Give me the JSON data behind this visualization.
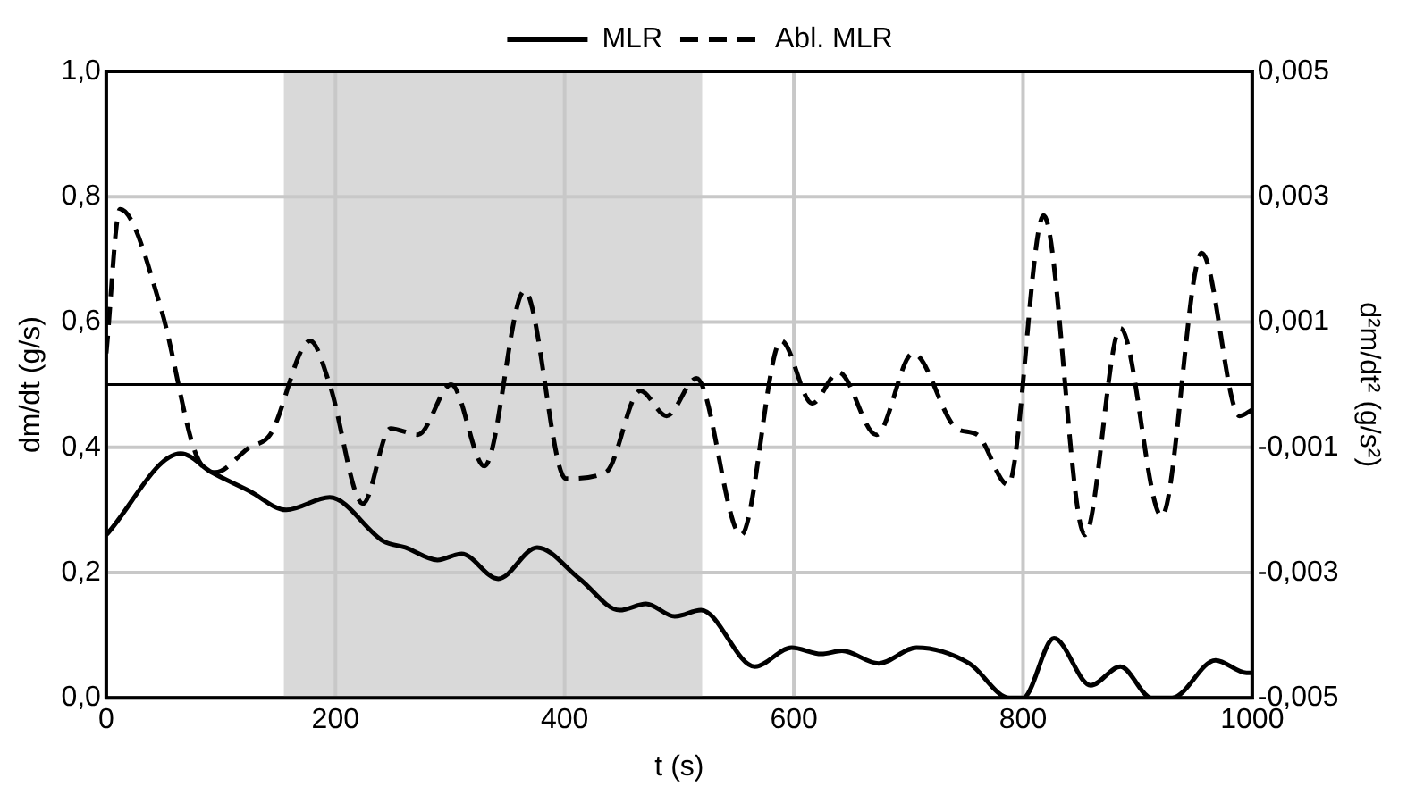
{
  "chart_data": {
    "type": "line",
    "xlabel": "t (s)",
    "ylabel": "dm/dt (g/s)",
    "y2label": "d²m/dt² (g/s²)",
    "xlim": [
      0,
      1000
    ],
    "xticks": [
      0,
      200,
      400,
      600,
      800,
      1000
    ],
    "ylim": [
      0,
      1
    ],
    "yticks": [
      {
        "value": 0,
        "label": "0,0"
      },
      {
        "value": 0.2,
        "label": "0,2"
      },
      {
        "value": 0.4,
        "label": "0,4"
      },
      {
        "value": 0.6,
        "label": "0,6"
      },
      {
        "value": 0.8,
        "label": "0,8"
      },
      {
        "value": 1,
        "label": "1,0"
      }
    ],
    "y2lim": [
      -0.005,
      0.005
    ],
    "y2ticks": [
      {
        "value": -0.005,
        "label": "-0,005"
      },
      {
        "value": -0.003,
        "label": "-0,003"
      },
      {
        "value": -0.001,
        "label": "-0,001"
      },
      {
        "value": 0.001,
        "label": "0,001"
      },
      {
        "value": 0.003,
        "label": "0,003"
      },
      {
        "value": 0.005,
        "label": "0,005"
      }
    ],
    "grid": true,
    "legend": "top",
    "marker": "none",
    "bands": [
      {
        "axis": "x",
        "from": 155,
        "to": 520,
        "color": "#d9d9d9"
      }
    ],
    "ref_lines": [
      {
        "axis": "y2",
        "value": 0,
        "color": "#000000"
      }
    ],
    "series": [
      {
        "name": "MLR",
        "color": "#000000",
        "line_style": "solid",
        "x": [
          0,
          65,
          92,
          125,
          157,
          195,
          242,
          261,
          289,
          310,
          342,
          376,
          413,
          448,
          471,
          496,
          519,
          566,
          598,
          624,
          642,
          674,
          707,
          753,
          788,
          800,
          827,
          859,
          885,
          912,
          930,
          968,
          995,
          1000
        ],
        "values": [
          0.26,
          0.39,
          0.36,
          0.33,
          0.3,
          0.32,
          0.25,
          0.24,
          0.22,
          0.23,
          0.19,
          0.24,
          0.19,
          0.14,
          0.15,
          0.13,
          0.14,
          0.05,
          0.08,
          0.07,
          0.075,
          0.055,
          0.08,
          0.055,
          0,
          0,
          0.095,
          0.02,
          0.05,
          0,
          0,
          0.06,
          0.04,
          0.04
        ]
      },
      {
        "name": "Abl. MLR",
        "color": "#000000",
        "line_style": "dashed",
        "axis": "y2",
        "x": [
          0,
          12,
          48,
          78,
          95,
          125,
          143,
          178,
          195,
          224,
          248,
          272,
          301,
          330,
          365,
          401,
          436,
          466,
          489,
          515,
          554,
          589,
          616,
          639,
          672,
          704,
          742,
          760,
          787,
          818,
          854,
          885,
          921,
          956,
          989,
          1000
        ],
        "values": [
          0.0005,
          0.0028,
          0.0012,
          -0.0011,
          -0.0014,
          -0.001,
          -0.0008,
          0.0007,
          0,
          -0.0019,
          -0.0007,
          -0.0008,
          0,
          -0.0013,
          0.0015,
          -0.0015,
          -0.0014,
          -0.0001,
          -0.0005,
          0.0001,
          -0.0024,
          0.0007,
          -0.0003,
          0.0002,
          -0.0008,
          0.0005,
          -0.0007,
          -0.0008,
          -0.0016,
          0.0027,
          -0.0024,
          0.0009,
          -0.0021,
          0.0021,
          -0.0005,
          -0.0004
        ]
      }
    ]
  }
}
